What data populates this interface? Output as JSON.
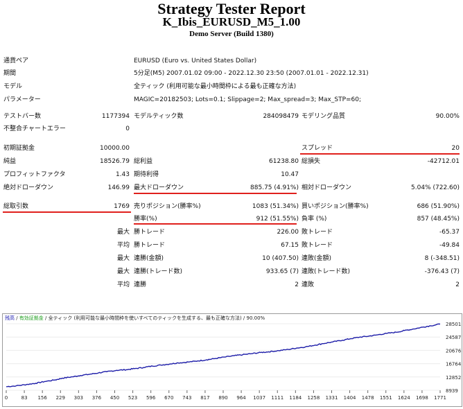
{
  "header": {
    "title": "Strategy Tester Report",
    "subtitle": "K_Ibis_EURUSD_M5_1.00",
    "server": "Demo Server (Build 1380)"
  },
  "info": {
    "symbol_label": "通貨ペア",
    "symbol_value": "EURUSD (Euro vs. United States Dollar)",
    "period_label": "期間",
    "period_value": "5分足(M5) 2007.01.02 09:00 - 2022.12.30 23:50 (2007.01.01 - 2022.12.31)",
    "model_label": "モデル",
    "model_value": "全ティック (利用可能な最小時間枠による最も正確な方法)",
    "params_label": "パラメーター",
    "params_value": "MAGIC=20182503; Lots=0.1; Slippage=2; Max_spread=3; Max_STP=60;"
  },
  "stats": {
    "bars_label": "テストバー数",
    "bars_value": "1177394",
    "ticks_label": "モデルティック数",
    "ticks_value": "284098479",
    "quality_label": "モデリング品質",
    "quality_value": "90.00%",
    "mismatch_label": "不整合チャートエラー",
    "mismatch_value": "0",
    "deposit_label": "初期証拠金",
    "deposit_value": "10000.00",
    "spread_label": "スプレッド",
    "spread_value": "20",
    "net_label": "純益",
    "net_value": "18526.79",
    "gross_profit_label": "総利益",
    "gross_profit_value": "61238.80",
    "gross_loss_label": "総損失",
    "gross_loss_value": "-42712.01",
    "pf_label": "プロフィットファクタ",
    "pf_value": "1.43",
    "expected_label": "期待利得",
    "expected_value": "10.47",
    "abs_dd_label": "絶対ドローダウン",
    "abs_dd_value": "146.99",
    "max_dd_label": "最大ドローダウン",
    "max_dd_value": "885.75 (4.91%)",
    "rel_dd_label": "相対ドローダウン",
    "rel_dd_value": "5.04% (722.60)",
    "trades_label": "総取引数",
    "trades_value": "1769",
    "short_label": "売りポジション(勝率%)",
    "short_value": "1083 (51.34%)",
    "long_label": "買いポジション(勝率%)",
    "long_value": "686 (51.90%)",
    "win_label": "勝率(%)",
    "win_value": "912 (51.55%)",
    "lose_label": "負率 (%)",
    "lose_value": "857 (48.45%)",
    "max_word": "最大",
    "avg_word": "平均",
    "largest_win_label": "勝トレード",
    "largest_win_value": "226.00",
    "largest_loss_label": "敗トレード",
    "largest_loss_value": "-65.37",
    "avg_win_label": "勝トレード",
    "avg_win_value": "67.15",
    "avg_loss_label": "敗トレード",
    "avg_loss_value": "-49.84",
    "cons_wins_money_label": "連勝(金額)",
    "cons_wins_money_value": "10 (407.50)",
    "cons_losses_money_label": "連敗(金額)",
    "cons_losses_money_value": "8 (-348.51)",
    "cons_profit_label": "連勝(トレード数)",
    "cons_profit_value": "933.65 (7)",
    "cons_loss_label": "連敗(トレード数)",
    "cons_loss_value": "-376.43 (7)",
    "avg_cons_wins_label": "連勝",
    "avg_cons_wins_value": "2",
    "avg_cons_losses_label": "連敗",
    "avg_cons_losses_value": "2"
  },
  "chart_data": {
    "type": "line",
    "legend_balance": "残高",
    "legend_sep1": " / ",
    "legend_margin": "有効証拠金",
    "legend_rest": " / 全ティック (利用可能な最小時間枠を使いすべてのティックを生成する、最も正確な方法) / 90.00%",
    "x_ticks": [
      "0",
      "83",
      "156",
      "229",
      "303",
      "376",
      "450",
      "523",
      "596",
      "670",
      "743",
      "817",
      "890",
      "964",
      "1037",
      "1111",
      "1184",
      "1258",
      "1331",
      "1404",
      "1478",
      "1551",
      "1624",
      "1698",
      "1771"
    ],
    "y_ticks": [
      "28501",
      "24587",
      "20676",
      "16764",
      "12852",
      "8939"
    ],
    "xlim": [
      0,
      1769
    ],
    "ylim": [
      8939,
      28501
    ],
    "balance_x": [
      0,
      40,
      83,
      120,
      156,
      200,
      229,
      270,
      303,
      340,
      376,
      410,
      450,
      490,
      523,
      560,
      596,
      630,
      670,
      700,
      743,
      780,
      817,
      850,
      890,
      930,
      964,
      1000,
      1037,
      1070,
      1111,
      1150,
      1184,
      1220,
      1258,
      1290,
      1331,
      1370,
      1404,
      1440,
      1478,
      1510,
      1551,
      1590,
      1624,
      1660,
      1698,
      1730,
      1769
    ],
    "balance_y": [
      10000,
      10250,
      10650,
      11000,
      11500,
      12000,
      12500,
      12900,
      13300,
      13650,
      14050,
      14400,
      14800,
      15000,
      15300,
      15650,
      16050,
      16350,
      16700,
      17000,
      17250,
      17550,
      17900,
      18250,
      18700,
      19100,
      19400,
      19700,
      20050,
      20250,
      20600,
      20950,
      21350,
      21700,
      22200,
      22650,
      23150,
      23650,
      24100,
      24550,
      24850,
      25200,
      25650,
      26000,
      26500,
      26950,
      27500,
      27900,
      28400
    ]
  },
  "colors": {
    "underline": "#e0201c",
    "balance_line": "#1c1ca8",
    "legend_balance": "#1a1ab0",
    "legend_margin": "#1f9d1f"
  }
}
